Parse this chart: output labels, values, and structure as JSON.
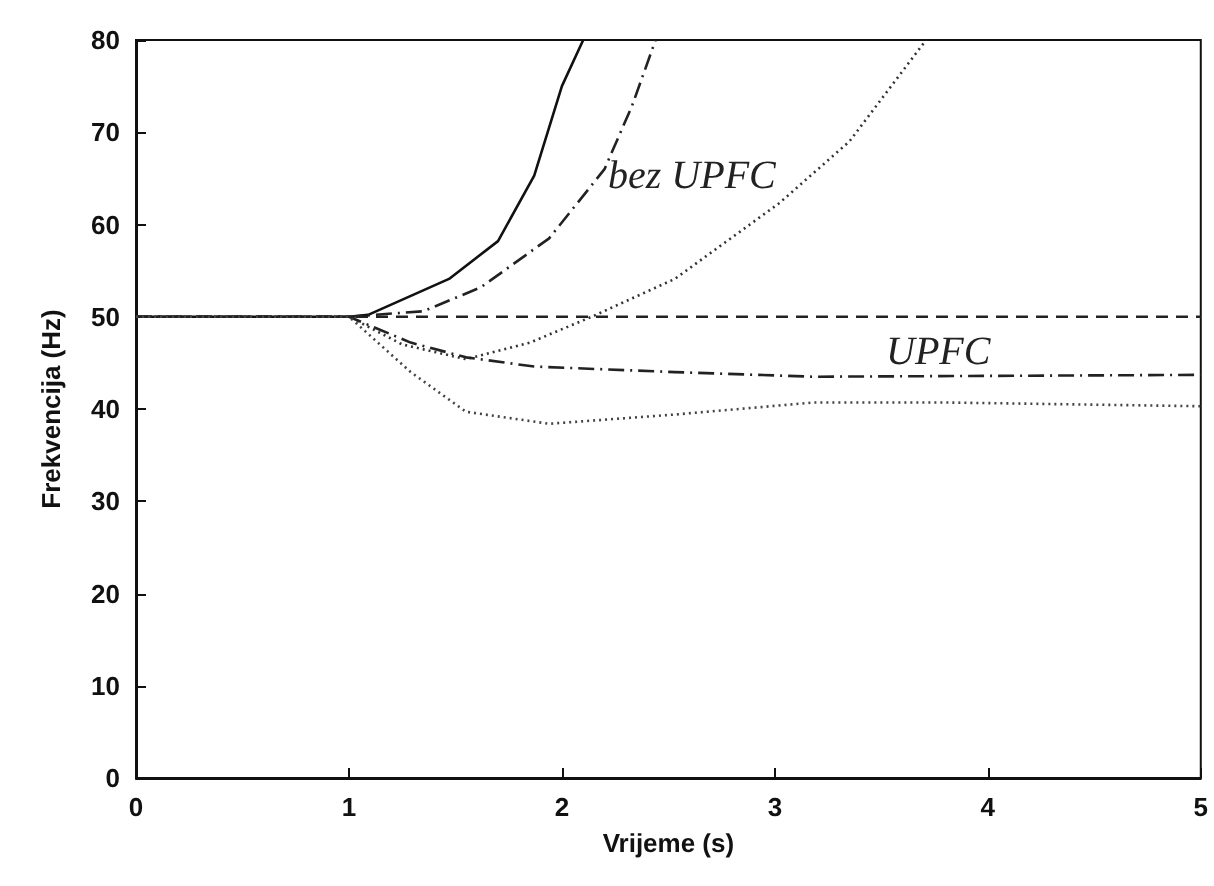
{
  "chart_data": {
    "type": "line",
    "xlabel": "Vrijeme (s)",
    "ylabel": "Frekvencija (Hz)",
    "xlim": [
      0,
      5
    ],
    "xticks": [
      0,
      1,
      2,
      3,
      4,
      5
    ],
    "ylim": [
      0,
      80
    ],
    "yticks": [
      0,
      10,
      20,
      30,
      40,
      50,
      60,
      70,
      80
    ],
    "grid": false,
    "marker": "none",
    "annotations": [
      "bez UPFC",
      "UPFC"
    ],
    "series": [
      {
        "color": "#111111",
        "line_style": "solid",
        "x": [
          0,
          1.0,
          1.09,
          1.47,
          1.7,
          1.87,
          2.0,
          2.1
        ],
        "values": [
          50,
          50,
          50.2,
          54.1,
          58.2,
          65.3,
          75,
          80
        ]
      },
      {
        "color": "#222222",
        "line_style": "dashdot",
        "x": [
          0,
          1.0,
          1.35,
          1.62,
          1.94,
          2.2,
          2.33,
          2.44
        ],
        "values": [
          50,
          50,
          50.6,
          53.2,
          58.5,
          66,
          72.9,
          80
        ]
      },
      {
        "color": "#333333",
        "line_style": "dotted",
        "x": [
          0,
          1.0,
          1.25,
          1.55,
          1.85,
          2.14,
          2.53,
          3.02,
          3.35,
          3.71
        ],
        "values": [
          50,
          50,
          47,
          45.4,
          47.2,
          50,
          54.1,
          62.3,
          69,
          80
        ]
      },
      {
        "color": "#222222",
        "line_style": "dashed",
        "x": [
          0,
          1.0,
          5
        ],
        "values": [
          50,
          50,
          50
        ]
      },
      {
        "color": "#222222",
        "line_style": "dashdot",
        "x": [
          0,
          1.0,
          1.29,
          1.55,
          1.87,
          2.53,
          3.18,
          5
        ],
        "values": [
          50,
          50,
          47.2,
          45.6,
          44.6,
          44,
          43.5,
          43.7
        ]
      },
      {
        "color": "#444444",
        "line_style": "dotted",
        "x": [
          0,
          1.0,
          1.29,
          1.55,
          1.94,
          2.53,
          3.18,
          3.82,
          5
        ],
        "values": [
          50,
          50,
          44,
          39.7,
          38.4,
          39.4,
          40.7,
          40.7,
          40.3
        ]
      }
    ]
  }
}
